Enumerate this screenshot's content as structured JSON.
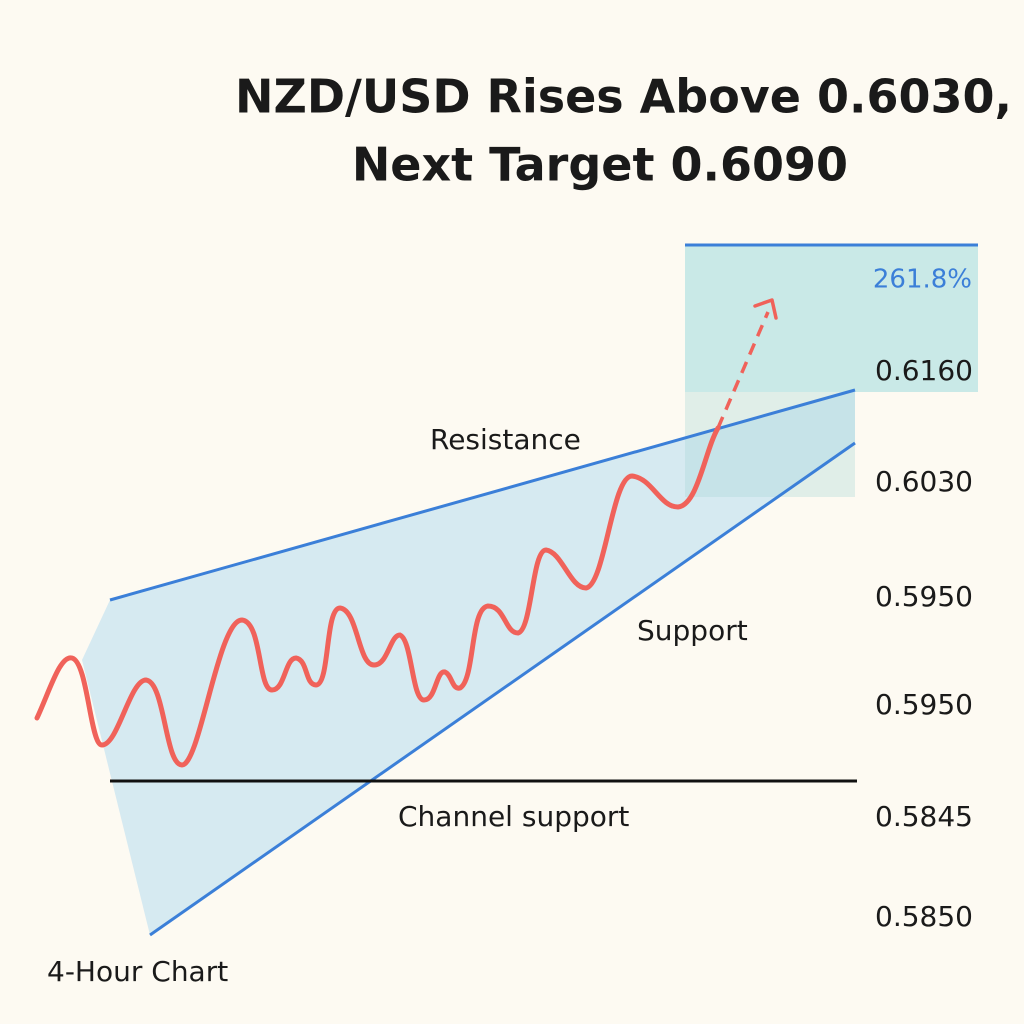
{
  "header": {
    "title_lines": [
      "NZD/USD Rises Above 0.6030,",
      "Next Target 0.6090"
    ]
  },
  "target_zone": {
    "label": "261.8%"
  },
  "price_labels": [
    "0.6160",
    "0.6030",
    "0.5950",
    "0.5950",
    "0.5845",
    "0.5850"
  ],
  "annotations": {
    "resistance": "Resistance",
    "support": "Support",
    "channel_support": "Channel support"
  },
  "footer": {
    "timeframe": "4-Hour Chart"
  }
}
